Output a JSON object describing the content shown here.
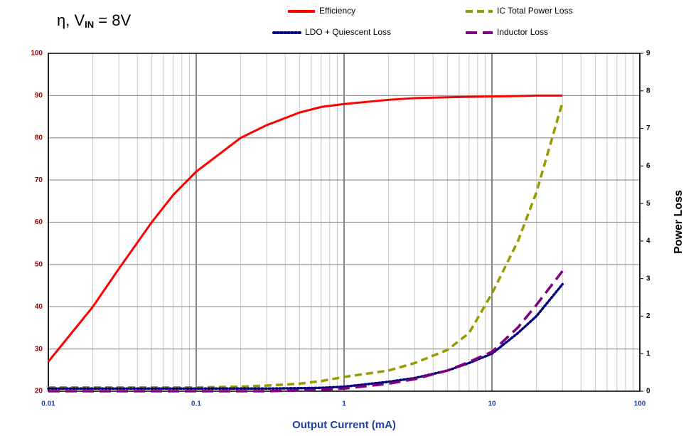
{
  "chart_data": {
    "type": "line",
    "title_parts": [
      "η, V",
      "IN",
      " = 8V"
    ],
    "x_label": "Output Current (mA)",
    "y2_label": "Power Loss",
    "x": [
      0.01,
      0.02,
      0.03,
      0.05,
      0.07,
      0.1,
      0.2,
      0.3,
      0.5,
      0.7,
      1,
      2,
      3,
      5,
      7,
      10,
      15,
      20,
      30
    ],
    "xlim": [
      0.01,
      100
    ],
    "xscale": "log",
    "xticks": [
      0.01,
      0.1,
      1,
      10,
      100
    ],
    "ylim": [
      20,
      100
    ],
    "yticks": [
      20,
      30,
      40,
      50,
      60,
      70,
      80,
      90,
      100
    ],
    "y2lim": [
      0,
      9
    ],
    "y2ticks": [
      0,
      1,
      2,
      3,
      4,
      5,
      6,
      7,
      8,
      9
    ],
    "grid": true,
    "legend": "top",
    "series": [
      {
        "name": "Efficiency",
        "color": "#ff0000",
        "dash": "solid",
        "values": [
          27,
          40,
          49,
          60,
          66.5,
          72,
          80,
          83,
          86,
          87.3,
          88,
          89,
          89.4,
          89.6,
          89.7,
          89.8,
          89.9,
          90,
          90
        ]
      },
      {
        "name": "IC Total Power Loss",
        "color": "#999900",
        "dash": "dashed",
        "axis": "y2",
        "values": [
          0.1,
          0.1,
          0.1,
          0.1,
          0.1,
          0.1,
          0.12,
          0.15,
          0.2,
          0.27,
          0.38,
          0.55,
          0.75,
          1.1,
          1.55,
          2.6,
          4.0,
          5.3,
          7.7
        ]
      },
      {
        "name": "LDO + Quiescent Loss",
        "color": "#000080",
        "dash": "dotted",
        "axis": "y2",
        "values": [
          0.07,
          0.07,
          0.07,
          0.07,
          0.07,
          0.07,
          0.07,
          0.07,
          0.08,
          0.09,
          0.12,
          0.25,
          0.35,
          0.55,
          0.75,
          1.0,
          1.55,
          2.0,
          2.85
        ]
      },
      {
        "name": "Inductor Loss",
        "color": "#800080",
        "dash": "longdash",
        "axis": "y2",
        "values": [
          0,
          0,
          0,
          0,
          0,
          0,
          0,
          0,
          0.02,
          0.04,
          0.07,
          0.2,
          0.32,
          0.55,
          0.78,
          1.05,
          1.7,
          2.3,
          3.2
        ]
      }
    ]
  }
}
